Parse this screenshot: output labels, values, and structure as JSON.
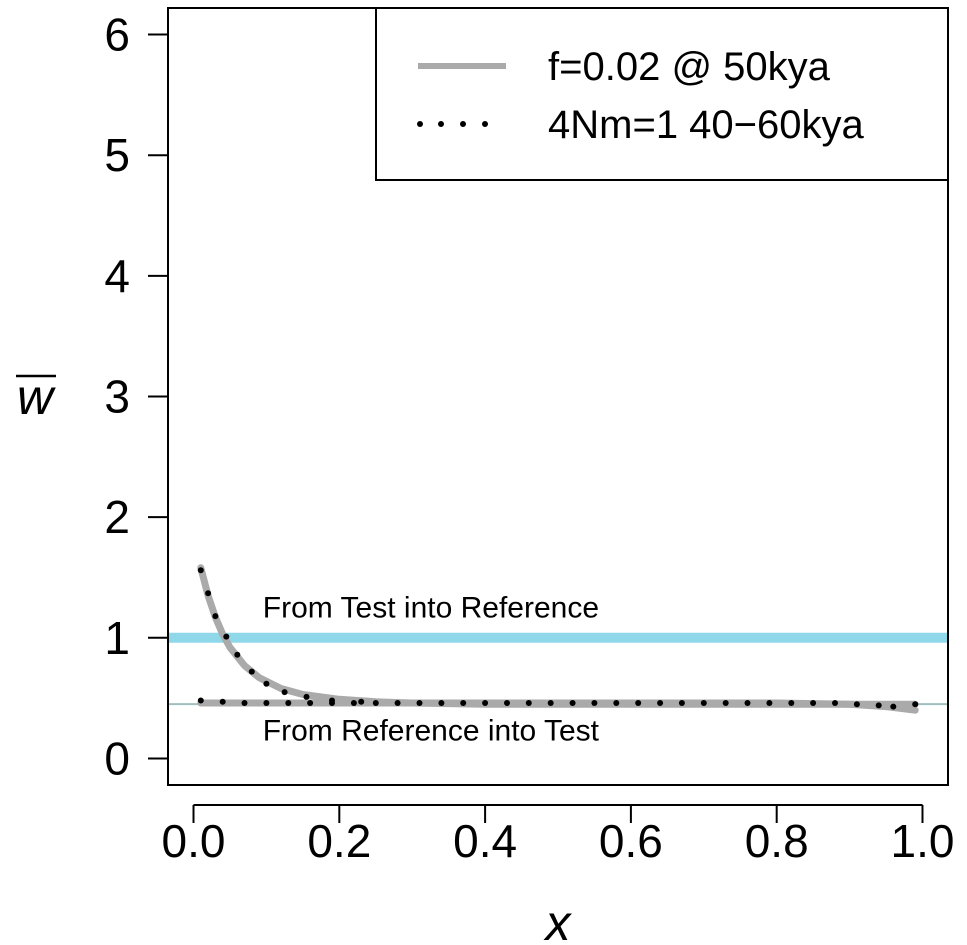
{
  "chart_data": {
    "type": "line",
    "xlabel": "x",
    "ylabel": "w",
    "ylabel_overline": true,
    "xlim": [
      -0.035,
      1.035
    ],
    "ylim": [
      -0.22,
      6.22
    ],
    "x_ticks": [
      "0.0",
      "0.2",
      "0.4",
      "0.6",
      "0.8",
      "1.0"
    ],
    "y_ticks": [
      "0",
      "1",
      "2",
      "3",
      "4",
      "5",
      "6"
    ],
    "grid": false,
    "legend": {
      "position": "top-right",
      "entries": [
        {
          "label": "f=0.02 @ 50kya",
          "style": "solid",
          "color": "#aaaaaa"
        },
        {
          "label": "4Nm=1 40−60kya",
          "style": "dotted",
          "color": "#000000"
        }
      ]
    },
    "reference_lines": [
      {
        "y": 1.0,
        "color": "#8fd8ea",
        "label": "From Test into Reference"
      },
      {
        "y": 0.45,
        "color": "#9fbfbf",
        "label": "From Reference into Test"
      }
    ],
    "series": [
      {
        "name": "f=0.02 @ 50kya",
        "group": "From Test into Reference",
        "style": "solid",
        "color": "#aaaaaa",
        "x": [
          0.01,
          0.02,
          0.03,
          0.04,
          0.05,
          0.07,
          0.09,
          0.12,
          0.15,
          0.2,
          0.25,
          0.3,
          0.4,
          0.5,
          0.6,
          0.7,
          0.8,
          0.9,
          0.99
        ],
        "y": [
          1.58,
          1.35,
          1.17,
          1.03,
          0.92,
          0.77,
          0.67,
          0.58,
          0.53,
          0.49,
          0.47,
          0.46,
          0.45,
          0.45,
          0.45,
          0.45,
          0.45,
          0.45,
          0.45
        ]
      },
      {
        "name": "f=0.02 @ 50kya",
        "group": "From Reference into Test",
        "style": "solid",
        "color": "#aaaaaa",
        "x": [
          0.01,
          0.05,
          0.1,
          0.2,
          0.3,
          0.4,
          0.5,
          0.6,
          0.7,
          0.8,
          0.85,
          0.9,
          0.95,
          0.99
        ],
        "y": [
          0.46,
          0.46,
          0.46,
          0.46,
          0.46,
          0.46,
          0.46,
          0.46,
          0.46,
          0.46,
          0.455,
          0.45,
          0.43,
          0.4
        ]
      },
      {
        "name": "4Nm=1 40−60kya",
        "group": "From Test into Reference",
        "style": "dotted",
        "color": "#000000",
        "x": [
          0.01,
          0.02,
          0.03,
          0.045,
          0.06,
          0.08,
          0.1,
          0.125,
          0.155,
          0.19,
          0.23
        ],
        "y": [
          1.56,
          1.37,
          1.18,
          1.01,
          0.86,
          0.72,
          0.62,
          0.55,
          0.51,
          0.48,
          0.47
        ]
      },
      {
        "name": "4Nm=1 40−60kya",
        "group": "From Reference into Test",
        "style": "dotted",
        "color": "#000000",
        "x": [
          0.01,
          0.04,
          0.07,
          0.1,
          0.13,
          0.16,
          0.19,
          0.22,
          0.25,
          0.28,
          0.31,
          0.34,
          0.37,
          0.4,
          0.43,
          0.46,
          0.49,
          0.52,
          0.55,
          0.58,
          0.61,
          0.64,
          0.67,
          0.7,
          0.73,
          0.76,
          0.79,
          0.82,
          0.85,
          0.88,
          0.91,
          0.94,
          0.96,
          0.99
        ],
        "y": [
          0.48,
          0.47,
          0.46,
          0.46,
          0.46,
          0.46,
          0.46,
          0.46,
          0.46,
          0.46,
          0.46,
          0.46,
          0.46,
          0.46,
          0.46,
          0.46,
          0.46,
          0.46,
          0.46,
          0.46,
          0.46,
          0.46,
          0.46,
          0.46,
          0.46,
          0.46,
          0.46,
          0.46,
          0.46,
          0.46,
          0.45,
          0.44,
          0.43,
          0.45
        ]
      }
    ],
    "annotations": [
      {
        "text": "From Test into Reference",
        "x": 0.095,
        "y": 1.25
      },
      {
        "text": "From Reference into Test",
        "x": 0.095,
        "y": 0.23
      }
    ]
  }
}
